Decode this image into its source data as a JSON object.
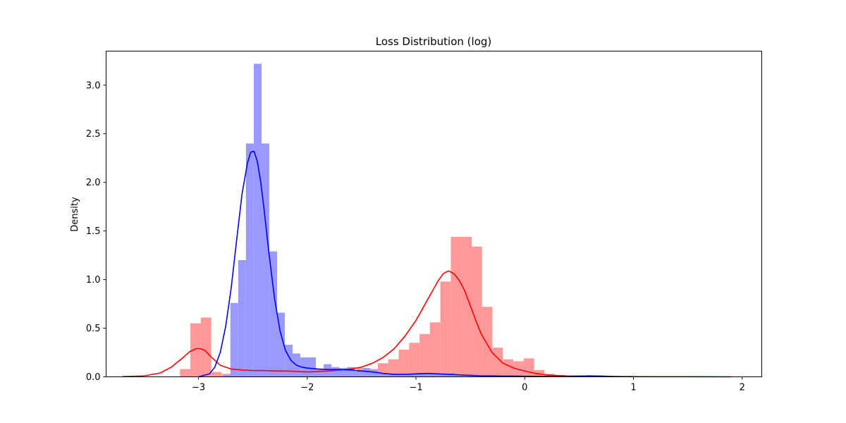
{
  "chart_data": {
    "type": "histogram",
    "title": "Loss Distribution (log)",
    "xlabel": "",
    "ylabel": "Density",
    "xlim": [
      -3.85,
      2.18
    ],
    "ylim": [
      0,
      3.35
    ],
    "xticks": [
      -3,
      -2,
      -1,
      0,
      1,
      2
    ],
    "xtick_labels": [
      "−3",
      "−2",
      "−1",
      "0",
      "1",
      "2"
    ],
    "yticks": [
      0.0,
      0.5,
      1.0,
      1.5,
      2.0,
      2.5,
      3.0
    ],
    "ytick_labels": [
      "0.0",
      "0.5",
      "1.0",
      "1.5",
      "2.0",
      "2.5",
      "3.0"
    ],
    "grid": false,
    "series": [
      {
        "color": "#ff0000",
        "bar_color": "#ff9999",
        "bin_width": 0.0958,
        "bins": [
          {
            "x": -3.171,
            "y": 0.08
          },
          {
            "x": -3.075,
            "y": 0.55
          },
          {
            "x": -2.979,
            "y": 0.61
          },
          {
            "x": -2.884,
            "y": 0.05
          },
          {
            "x": -2.788,
            "y": 0.03
          },
          {
            "x": -2.692,
            "y": 0.03
          },
          {
            "x": -2.596,
            "y": 0.05
          },
          {
            "x": -2.5,
            "y": 0.07
          },
          {
            "x": -2.404,
            "y": 0.06
          },
          {
            "x": -2.309,
            "y": 0.05
          },
          {
            "x": -2.213,
            "y": 0.06
          },
          {
            "x": -2.117,
            "y": 0.05
          },
          {
            "x": -2.021,
            "y": 0.04
          },
          {
            "x": -1.925,
            "y": 0.05
          },
          {
            "x": -1.83,
            "y": 0.06
          },
          {
            "x": -1.734,
            "y": 0.07
          },
          {
            "x": -1.638,
            "y": 0.05
          },
          {
            "x": -1.542,
            "y": 0.09
          },
          {
            "x": -1.446,
            "y": 0.08
          },
          {
            "x": -1.351,
            "y": 0.14
          },
          {
            "x": -1.255,
            "y": 0.18
          },
          {
            "x": -1.159,
            "y": 0.28
          },
          {
            "x": -1.063,
            "y": 0.35
          },
          {
            "x": -0.967,
            "y": 0.44
          },
          {
            "x": -0.872,
            "y": 0.56
          },
          {
            "x": -0.776,
            "y": 0.98
          },
          {
            "x": -0.68,
            "y": 1.44
          },
          {
            "x": -0.584,
            "y": 1.44
          },
          {
            "x": -0.488,
            "y": 1.34
          },
          {
            "x": -0.393,
            "y": 0.72
          },
          {
            "x": -0.297,
            "y": 0.3
          },
          {
            "x": -0.201,
            "y": 0.18
          },
          {
            "x": -0.105,
            "y": 0.16
          },
          {
            "x": -0.009,
            "y": 0.19
          },
          {
            "x": 0.086,
            "y": 0.07
          },
          {
            "x": 0.182,
            "y": 0.03
          },
          {
            "x": 0.278,
            "y": 0.02
          },
          {
            "x": 0.374,
            "y": 0.01
          },
          {
            "x": 0.47,
            "y": 0.01
          },
          {
            "x": 0.565,
            "y": 0.01
          },
          {
            "x": 0.661,
            "y": 0.005
          },
          {
            "x": 0.757,
            "y": 0.005
          },
          {
            "x": 0.853,
            "y": 0.005
          },
          {
            "x": 0.949,
            "y": 0.0
          },
          {
            "x": 1.044,
            "y": 0.005
          },
          {
            "x": 1.14,
            "y": 0.0
          },
          {
            "x": 1.236,
            "y": 0.0
          },
          {
            "x": 1.332,
            "y": 0.0
          },
          {
            "x": 1.428,
            "y": 0.0
          },
          {
            "x": 1.523,
            "y": 0.0
          },
          {
            "x": 1.619,
            "y": 0.0
          },
          {
            "x": 1.715,
            "y": 0.0
          },
          {
            "x": 1.811,
            "y": 0.005
          }
        ],
        "kde": {
          "x": [
            -3.7,
            -3.5,
            -3.35,
            -3.25,
            -3.15,
            -3.08,
            -3.02,
            -2.98,
            -2.94,
            -2.88,
            -2.8,
            -2.7,
            -2.6,
            -2.5,
            -2.4,
            -2.3,
            -2.2,
            -2.1,
            -2.0,
            -1.9,
            -1.8,
            -1.7,
            -1.6,
            -1.5,
            -1.4,
            -1.3,
            -1.2,
            -1.1,
            -1.0,
            -0.9,
            -0.8,
            -0.75,
            -0.7,
            -0.65,
            -0.6,
            -0.55,
            -0.5,
            -0.45,
            -0.4,
            -0.3,
            -0.2,
            -0.1,
            0.0,
            0.1,
            0.2,
            0.3,
            0.4,
            0.6,
            0.8,
            1.0,
            1.2,
            1.5,
            1.9
          ],
          "y": [
            0.002,
            0.01,
            0.04,
            0.1,
            0.19,
            0.26,
            0.29,
            0.29,
            0.27,
            0.2,
            0.12,
            0.08,
            0.07,
            0.065,
            0.065,
            0.06,
            0.06,
            0.055,
            0.05,
            0.055,
            0.06,
            0.07,
            0.08,
            0.1,
            0.14,
            0.2,
            0.29,
            0.42,
            0.58,
            0.78,
            0.98,
            1.06,
            1.09,
            1.06,
            0.99,
            0.88,
            0.73,
            0.58,
            0.44,
            0.25,
            0.14,
            0.09,
            0.06,
            0.035,
            0.02,
            0.012,
            0.008,
            0.005,
            0.003,
            0.002,
            0.001,
            0.001,
            0.0
          ]
        }
      },
      {
        "color": "#0000ff",
        "bar_color": "#9999ff",
        "bin_width": 0.0715,
        "bins": [
          {
            "x": -2.778,
            "y": 0.02
          },
          {
            "x": -2.707,
            "y": 0.76
          },
          {
            "x": -2.635,
            "y": 1.2
          },
          {
            "x": -2.564,
            "y": 2.4
          },
          {
            "x": -2.492,
            "y": 3.22
          },
          {
            "x": -2.421,
            "y": 2.4
          },
          {
            "x": -2.349,
            "y": 1.29
          },
          {
            "x": -2.278,
            "y": 0.66
          },
          {
            "x": -2.206,
            "y": 0.33
          },
          {
            "x": -2.135,
            "y": 0.24
          },
          {
            "x": -2.063,
            "y": 0.2
          },
          {
            "x": -1.992,
            "y": 0.2
          },
          {
            "x": -1.92,
            "y": 0.08
          },
          {
            "x": -1.849,
            "y": 0.13
          },
          {
            "x": -1.777,
            "y": 0.1
          },
          {
            "x": -1.706,
            "y": 0.09
          },
          {
            "x": -1.634,
            "y": 0.1
          },
          {
            "x": -1.563,
            "y": 0.06
          },
          {
            "x": -1.491,
            "y": 0.09
          },
          {
            "x": -1.42,
            "y": 0.07
          },
          {
            "x": -1.348,
            "y": 0.03
          },
          {
            "x": -1.277,
            "y": 0.02
          },
          {
            "x": -1.205,
            "y": 0.03
          },
          {
            "x": -1.134,
            "y": 0.02
          },
          {
            "x": -1.062,
            "y": 0.03
          },
          {
            "x": -0.991,
            "y": 0.04
          },
          {
            "x": -0.919,
            "y": 0.04
          },
          {
            "x": -0.848,
            "y": 0.03
          },
          {
            "x": -0.776,
            "y": 0.02
          },
          {
            "x": -0.705,
            "y": 0.04
          },
          {
            "x": -0.633,
            "y": 0.02
          },
          {
            "x": -0.562,
            "y": 0.02
          },
          {
            "x": -0.49,
            "y": 0.01
          },
          {
            "x": -0.419,
            "y": 0.01
          },
          {
            "x": -0.347,
            "y": 0.01
          },
          {
            "x": -0.276,
            "y": 0.01
          },
          {
            "x": -0.204,
            "y": 0.005
          },
          {
            "x": -0.133,
            "y": 0.01
          },
          {
            "x": -0.061,
            "y": 0.01
          },
          {
            "x": 0.01,
            "y": 0.005
          },
          {
            "x": 0.082,
            "y": 0.005
          },
          {
            "x": 0.153,
            "y": 0.005
          },
          {
            "x": 0.225,
            "y": 0.01
          },
          {
            "x": 0.296,
            "y": 0.005
          },
          {
            "x": 0.368,
            "y": 0.005
          },
          {
            "x": 0.439,
            "y": 0.005
          },
          {
            "x": 0.511,
            "y": 0.005
          },
          {
            "x": 0.582,
            "y": 0.01
          },
          {
            "x": 0.654,
            "y": 0.005
          }
        ],
        "kde": {
          "x": [
            -3.0,
            -2.9,
            -2.85,
            -2.8,
            -2.75,
            -2.7,
            -2.65,
            -2.6,
            -2.55,
            -2.52,
            -2.49,
            -2.46,
            -2.43,
            -2.4,
            -2.35,
            -2.3,
            -2.25,
            -2.2,
            -2.15,
            -2.1,
            -2.05,
            -2.0,
            -1.9,
            -1.8,
            -1.7,
            -1.6,
            -1.5,
            -1.4,
            -1.3,
            -1.2,
            -1.1,
            -1.0,
            -0.9,
            -0.8,
            -0.7,
            -0.6,
            -0.5,
            -0.4,
            -0.3,
            -0.2,
            -0.1,
            0.0,
            0.1,
            0.2,
            0.3,
            0.4,
            0.5,
            0.6,
            0.7,
            0.8,
            1.0
          ],
          "y": [
            0.001,
            0.03,
            0.1,
            0.25,
            0.52,
            0.91,
            1.4,
            1.88,
            2.2,
            2.31,
            2.32,
            2.22,
            2.02,
            1.75,
            1.25,
            0.8,
            0.47,
            0.27,
            0.17,
            0.12,
            0.1,
            0.09,
            0.08,
            0.075,
            0.075,
            0.07,
            0.06,
            0.05,
            0.035,
            0.025,
            0.025,
            0.03,
            0.035,
            0.03,
            0.025,
            0.02,
            0.015,
            0.01,
            0.01,
            0.008,
            0.008,
            0.006,
            0.005,
            0.005,
            0.006,
            0.006,
            0.008,
            0.01,
            0.008,
            0.004,
            0.001
          ]
        }
      }
    ]
  }
}
